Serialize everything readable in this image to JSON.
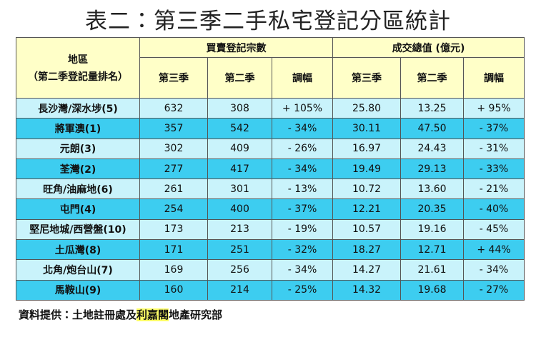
{
  "title": "表二：第三季二手私宅登記分區統計",
  "table": {
    "header": {
      "region": "地區",
      "region_note": "（第二季登記量排名）",
      "groups": [
        "買賣登記宗數",
        "成交總值 (億元)"
      ],
      "subheaders": [
        "第三季",
        "第二季",
        "調幅",
        "第三季",
        "第二季",
        "調幅"
      ]
    },
    "rows": [
      [
        "長沙灣/深水埗(5)",
        "632",
        "308",
        "+ 105%",
        "25.80",
        "13.25",
        "+ 95%"
      ],
      [
        "將軍澳(1)",
        "357",
        "542",
        "- 34%",
        "30.11",
        "47.50",
        "- 37%"
      ],
      [
        "元朗(3)",
        "302",
        "409",
        "- 26%",
        "16.97",
        "24.43",
        "- 31%"
      ],
      [
        "荃灣(2)",
        "277",
        "417",
        "- 34%",
        "19.49",
        "29.13",
        "- 33%"
      ],
      [
        "旺角/油麻地(6)",
        "261",
        "301",
        "- 13%",
        "10.72",
        "13.60",
        "- 21%"
      ],
      [
        "屯門(4)",
        "254",
        "400",
        "- 37%",
        "12.21",
        "20.35",
        "- 40%"
      ],
      [
        "堅尼地城/西營盤(10)",
        "173",
        "213",
        "- 19%",
        "10.57",
        "19.16",
        "- 45%"
      ],
      [
        "土瓜灣(8)",
        "171",
        "251",
        "- 32%",
        "18.27",
        "12.71",
        "+ 44%"
      ],
      [
        "北角/炮台山(7)",
        "169",
        "256",
        "- 34%",
        "14.27",
        "21.61",
        "- 34%"
      ],
      [
        "馬鞍山(9)",
        "160",
        "214",
        "- 25%",
        "14.32",
        "19.68",
        "- 27%"
      ]
    ]
  },
  "source": {
    "prefix": "資料提供：土地註冊處及",
    "highlight": "利嘉閣",
    "suffix": "地產研究部"
  }
}
